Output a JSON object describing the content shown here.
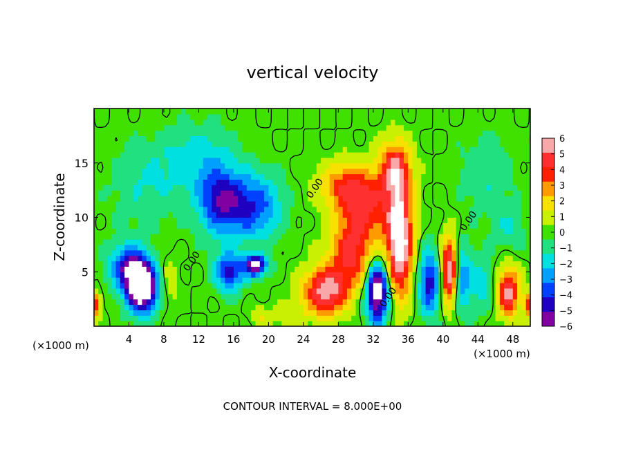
{
  "chart_data": {
    "type": "heatmap",
    "title": "vertical velocity",
    "xlabel": "X-coordinate",
    "ylabel": "Z-coordinate",
    "x_unit_left": "(×1000 m)",
    "x_unit_right": "(×1000 m)",
    "footer": "CONTOUR INTERVAL = 8.000E+00",
    "xlim": [
      0,
      50
    ],
    "ylim": [
      0,
      20
    ],
    "x_ticks": [
      4,
      8,
      12,
      16,
      20,
      24,
      28,
      32,
      36,
      40,
      44,
      48
    ],
    "y_ticks": [
      5,
      10,
      15
    ],
    "contour_labels": [
      {
        "text": "0.00",
        "x": 25.6,
        "y": 12.5
      },
      {
        "text": "0.00",
        "x": 11.5,
        "y": 5.8
      },
      {
        "text": "0.00",
        "x": 43.2,
        "y": 9.5
      },
      {
        "text": "0.00",
        "x": 34.0,
        "y": 2.5
      }
    ],
    "colorbar": {
      "levels": [
        "6",
        "5",
        "4",
        "3",
        "2",
        "1",
        "0",
        "−1",
        "−2",
        "−3",
        "−4",
        "−5",
        "−6"
      ],
      "colors": [
        "#f8a8a8",
        "#ff3030",
        "#ff2000",
        "#ff9a00",
        "#f8e000",
        "#c8f000",
        "#40e000",
        "#20e080",
        "#00e0e0",
        "#00a0ff",
        "#0040ff",
        "#2000c0",
        "#8000a0"
      ]
    },
    "features": [
      {
        "x": 5.5,
        "y": 3.5,
        "w": -9,
        "sx": 1.8,
        "sy": 2.2
      },
      {
        "x": 4.0,
        "y": 5.5,
        "w": -5,
        "sx": 2.2,
        "sy": 2.0
      },
      {
        "x": 14.5,
        "y": 11.5,
        "w": -5,
        "sx": 2.6,
        "sy": 3.0
      },
      {
        "x": 18.5,
        "y": 11.0,
        "w": -4,
        "sx": 3.0,
        "sy": 3.0
      },
      {
        "x": 15.5,
        "y": 5.0,
        "w": -5,
        "sx": 1.6,
        "sy": 1.8
      },
      {
        "x": 18.5,
        "y": 5.6,
        "w": -7,
        "sx": 1.3,
        "sy": 1.0
      },
      {
        "x": 12.0,
        "y": 15.5,
        "w": -2,
        "sx": 4.0,
        "sy": 3.0
      },
      {
        "x": 6.0,
        "y": 13.0,
        "w": -1.5,
        "sx": 4.0,
        "sy": 4.0
      },
      {
        "x": 8.5,
        "y": 4.0,
        "w": 1.2,
        "sx": 1.2,
        "sy": 2.5
      },
      {
        "x": 26.5,
        "y": 3.2,
        "w": 6,
        "sx": 2.5,
        "sy": 2.2
      },
      {
        "x": 29.5,
        "y": 6.5,
        "w": 4.5,
        "sx": 2.5,
        "sy": 3.0
      },
      {
        "x": 31.0,
        "y": 11.0,
        "w": 4.5,
        "sx": 3.0,
        "sy": 3.0
      },
      {
        "x": 35.0,
        "y": 8.0,
        "w": 8,
        "sx": 1.5,
        "sy": 5.0
      },
      {
        "x": 34.5,
        "y": 14.5,
        "w": 5,
        "sx": 1.8,
        "sy": 2.5
      },
      {
        "x": 28.5,
        "y": 13.0,
        "w": 3,
        "sx": 3.0,
        "sy": 2.0
      },
      {
        "x": 32.5,
        "y": 3.2,
        "w": -8,
        "sx": 1.3,
        "sy": 2.8
      },
      {
        "x": 38.5,
        "y": 4.0,
        "w": -5,
        "sx": 1.3,
        "sy": 3.0
      },
      {
        "x": 40.8,
        "y": 5.0,
        "w": 8,
        "sx": 1.0,
        "sy": 3.0
      },
      {
        "x": 42.0,
        "y": 4.5,
        "w": -4,
        "sx": 1.3,
        "sy": 3.0
      },
      {
        "x": 44.5,
        "y": 4.0,
        "w": -2,
        "sx": 1.2,
        "sy": 2.5
      },
      {
        "x": 47.5,
        "y": 3.2,
        "w": 6,
        "sx": 1.2,
        "sy": 2.2
      },
      {
        "x": 49.8,
        "y": 2.0,
        "w": 4,
        "sx": 0.6,
        "sy": 1.2
      },
      {
        "x": 0.2,
        "y": 2.0,
        "w": 4,
        "sx": 0.6,
        "sy": 1.2
      },
      {
        "x": 45.0,
        "y": 14.0,
        "w": -1.5,
        "sx": 3.0,
        "sy": 3.5
      },
      {
        "x": 47.5,
        "y": 9.0,
        "w": -1.5,
        "sx": 2.0,
        "sy": 2.0
      },
      {
        "x": 22.0,
        "y": 1.0,
        "w": 1.2,
        "sx": 2.0,
        "sy": 1.2
      },
      {
        "x": 19.0,
        "y": 1.0,
        "w": 1.5,
        "sx": 1.0,
        "sy": 0.8
      }
    ]
  }
}
